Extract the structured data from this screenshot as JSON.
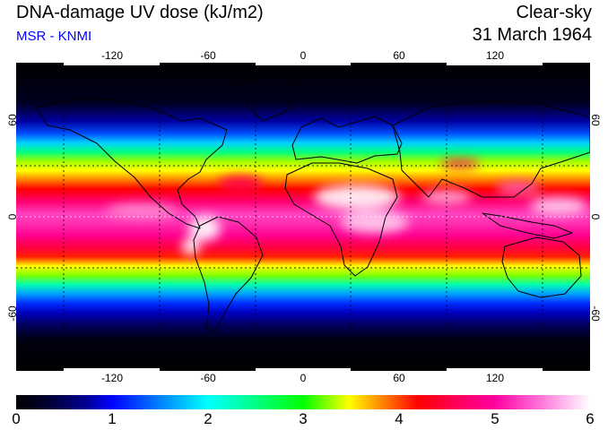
{
  "header": {
    "title": "DNA-damage UV dose (kJ/m2)",
    "credit": "MSR - KNMI",
    "subtitle": "Clear-sky",
    "date": "31 March 1964"
  },
  "map": {
    "lon_ticks": [
      "-120",
      "-60",
      "0",
      "60",
      "120"
    ],
    "lat_ticks": [
      "60",
      "0",
      "-60"
    ],
    "lon_values": [
      -120,
      -60,
      0,
      60,
      120
    ],
    "lat_values": [
      60,
      0,
      -60
    ],
    "gridline_lats": [
      -30,
      0,
      30
    ],
    "gridline_lons": [
      -150,
      -90,
      -30,
      30,
      90,
      150
    ],
    "extent": {
      "lon": [
        -180,
        180
      ],
      "lat": [
        -90,
        90
      ]
    }
  },
  "colorbar": {
    "ticks": [
      "0",
      "1",
      "2",
      "3",
      "4",
      "5",
      "6"
    ],
    "values": [
      0,
      1,
      2,
      3,
      4,
      5,
      6
    ],
    "colors": [
      "#000000",
      "#0000ff",
      "#00ffff",
      "#00ff00",
      "#ffff00",
      "#ff0000",
      "#ff00a0",
      "#ffffff"
    ]
  }
}
